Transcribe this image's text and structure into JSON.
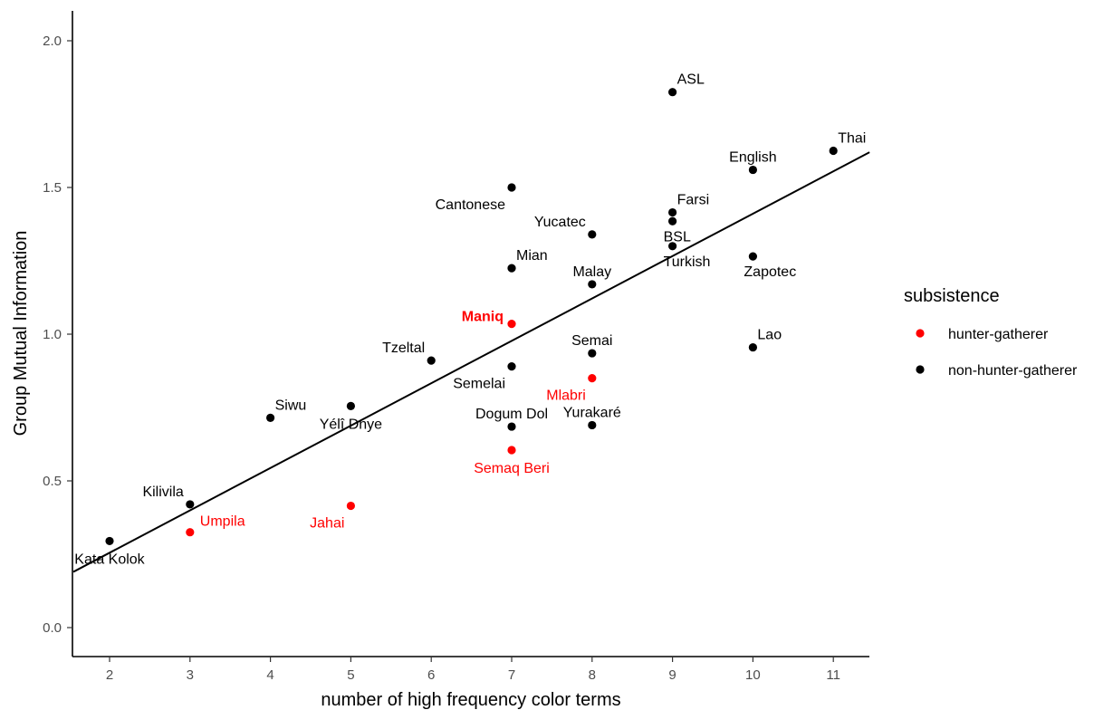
{
  "chart_data": {
    "type": "scatter",
    "xlabel": "number of high frequency color terms",
    "ylabel": "Group Mutual Information",
    "xlim": [
      1.55,
      11.45
    ],
    "ylim": [
      -0.08,
      2.1
    ],
    "x_ticks": [
      2,
      3,
      4,
      5,
      6,
      7,
      8,
      9,
      10,
      11
    ],
    "y_ticks": [
      0.0,
      0.5,
      1.0,
      1.5,
      2.0
    ],
    "y_tick_labels": [
      "0.0",
      "0.5",
      "1.0",
      "1.5",
      "2.0"
    ],
    "grid": false,
    "legend": {
      "title": "subsistence",
      "position": "right",
      "entries": [
        {
          "name": "hunter-gatherer",
          "color": "#ff0000"
        },
        {
          "name": "non-hunter-gatherer",
          "color": "#000000"
        }
      ]
    },
    "trend_line": {
      "x": [
        1.55,
        11.45
      ],
      "y": [
        0.19,
        1.62
      ]
    },
    "points": [
      {
        "name": "Kata Kolok",
        "x": 2,
        "y": 0.295,
        "group": "non-hunter-gatherer",
        "label_anchor": "below"
      },
      {
        "name": "Kilivila",
        "x": 3,
        "y": 0.42,
        "group": "non-hunter-gatherer",
        "label_anchor": "above-left"
      },
      {
        "name": "Umpila",
        "x": 3,
        "y": 0.325,
        "group": "hunter-gatherer",
        "label_anchor": "right"
      },
      {
        "name": "Siwu",
        "x": 4,
        "y": 0.715,
        "group": "non-hunter-gatherer",
        "label_anchor": "above-right"
      },
      {
        "name": "Yélî Dnye",
        "x": 5,
        "y": 0.755,
        "group": "non-hunter-gatherer",
        "label_anchor": "below"
      },
      {
        "name": "Jahai",
        "x": 5,
        "y": 0.415,
        "group": "hunter-gatherer",
        "label_anchor": "below-left"
      },
      {
        "name": "Tzeltal",
        "x": 6,
        "y": 0.91,
        "group": "non-hunter-gatherer",
        "label_anchor": "above-left"
      },
      {
        "name": "Cantonese",
        "x": 7,
        "y": 1.5,
        "group": "non-hunter-gatherer",
        "label_anchor": "below-left"
      },
      {
        "name": "Mian",
        "x": 7,
        "y": 1.225,
        "group": "non-hunter-gatherer",
        "label_anchor": "above-right"
      },
      {
        "name": "Maniq",
        "x": 7,
        "y": 1.035,
        "group": "hunter-gatherer",
        "label_anchor": "left-bold"
      },
      {
        "name": "Semelai",
        "x": 7,
        "y": 0.89,
        "group": "non-hunter-gatherer",
        "label_anchor": "below-left"
      },
      {
        "name": "Dogum Dol",
        "x": 7,
        "y": 0.685,
        "group": "non-hunter-gatherer",
        "label_anchor": "above"
      },
      {
        "name": "Semaq Beri",
        "x": 7,
        "y": 0.605,
        "group": "hunter-gatherer",
        "label_anchor": "below"
      },
      {
        "name": "Yucatec",
        "x": 8,
        "y": 1.34,
        "group": "non-hunter-gatherer",
        "label_anchor": "above-left"
      },
      {
        "name": "Malay",
        "x": 8,
        "y": 1.17,
        "group": "non-hunter-gatherer",
        "label_anchor": "above"
      },
      {
        "name": "Semai",
        "x": 8,
        "y": 0.935,
        "group": "non-hunter-gatherer",
        "label_anchor": "above"
      },
      {
        "name": "Mlabri",
        "x": 8,
        "y": 0.85,
        "group": "hunter-gatherer",
        "label_anchor": "below-left"
      },
      {
        "name": "Yurakaré",
        "x": 8,
        "y": 0.69,
        "group": "non-hunter-gatherer",
        "label_anchor": "above"
      },
      {
        "name": "ASL",
        "x": 9,
        "y": 1.825,
        "group": "non-hunter-gatherer",
        "label_anchor": "above-right"
      },
      {
        "name": "Farsi",
        "x": 9,
        "y": 1.415,
        "group": "non-hunter-gatherer",
        "label_anchor": "above-right"
      },
      {
        "name": "BSL",
        "x": 9,
        "y": 1.385,
        "group": "non-hunter-gatherer",
        "label_anchor": "below-right"
      },
      {
        "name": "Turkish",
        "x": 9,
        "y": 1.3,
        "group": "non-hunter-gatherer",
        "label_anchor": "below-right"
      },
      {
        "name": "English",
        "x": 10,
        "y": 1.56,
        "group": "non-hunter-gatherer",
        "label_anchor": "above"
      },
      {
        "name": "Zapotec",
        "x": 10,
        "y": 1.265,
        "group": "non-hunter-gatherer",
        "label_anchor": "below-right"
      },
      {
        "name": "Lao",
        "x": 10,
        "y": 0.955,
        "group": "non-hunter-gatherer",
        "label_anchor": "above-right"
      },
      {
        "name": "Thai",
        "x": 11,
        "y": 1.625,
        "group": "non-hunter-gatherer",
        "label_anchor": "above-right"
      }
    ]
  }
}
